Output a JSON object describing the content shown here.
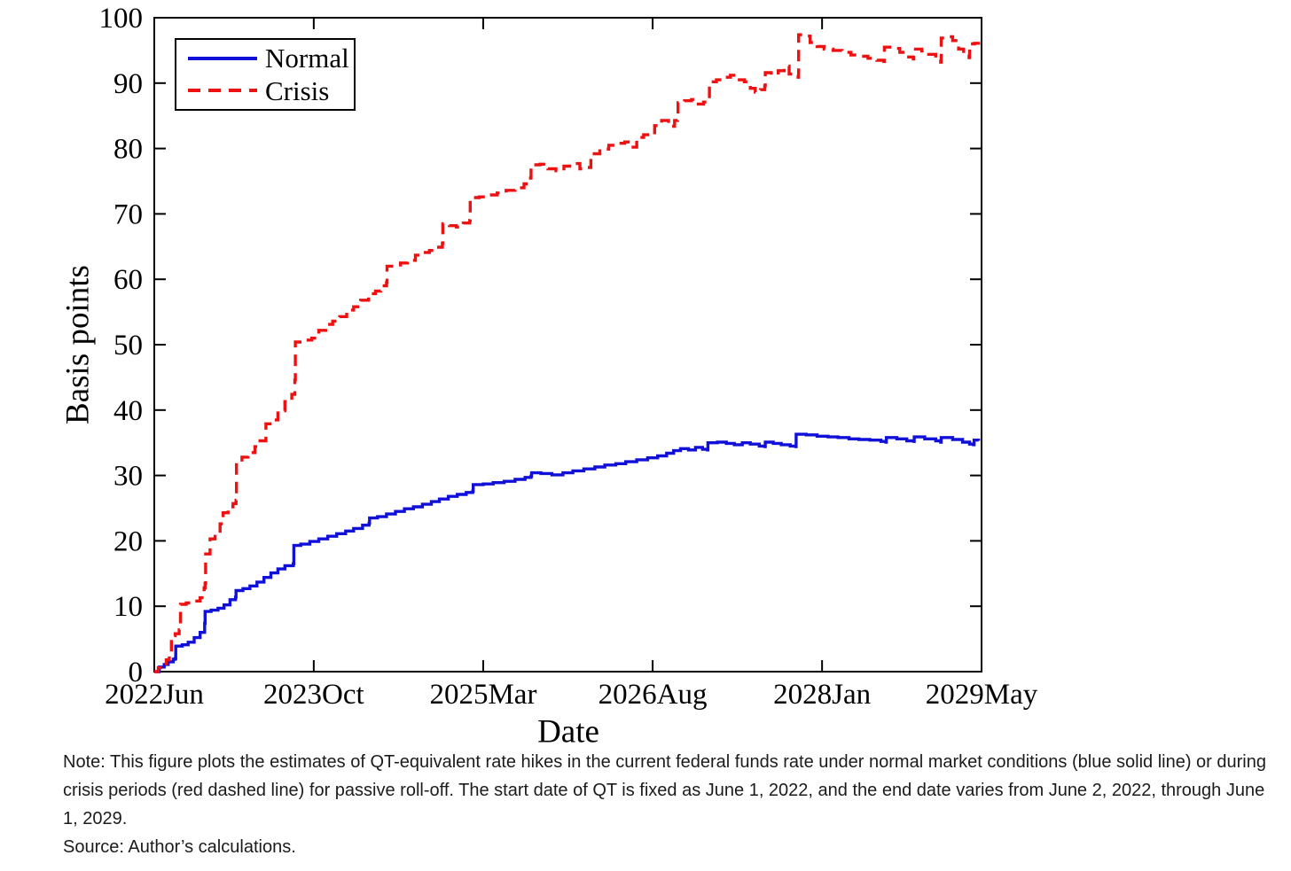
{
  "figure": {
    "legend": [
      {
        "label": "Normal",
        "color": "#1010d8",
        "style": "solid"
      },
      {
        "label": "Crisis",
        "color": "#ee1111",
        "style": "dashed"
      }
    ]
  },
  "note": {
    "text": "Note: This figure plots the estimates of QT-equivalent rate hikes in the current federal funds rate under normal market conditions (blue solid line) or during crisis periods (red dashed line) for passive roll-off. The start date of QT is fixed as June 1, 2022, and the end date varies from June 2, 2022, through June 1, 2029.",
    "source": "Source: Author’s calculations."
  },
  "chart_data": {
    "type": "line",
    "title": "",
    "xlabel": "Date",
    "ylabel": "Basis points",
    "x_unit": "months since June 2022",
    "xlim": [
      0,
      83
    ],
    "ylim": [
      0,
      100
    ],
    "grid": false,
    "legend_position": "top-left",
    "box": true,
    "yticks": [
      0,
      10,
      20,
      30,
      40,
      50,
      60,
      70,
      80,
      90,
      100
    ],
    "xticks": [
      {
        "pos": 0,
        "label": "2022Jun"
      },
      {
        "pos": 16,
        "label": "2023Oct"
      },
      {
        "pos": 33,
        "label": "2025Mar"
      },
      {
        "pos": 50,
        "label": "2026Aug"
      },
      {
        "pos": 67,
        "label": "2028Jan"
      },
      {
        "pos": 83,
        "label": "2029May"
      }
    ],
    "series": [
      {
        "name": "Normal",
        "color": "#1010d8",
        "dash": "solid",
        "interpolation": "step-after",
        "points": [
          [
            0,
            0
          ],
          [
            0.5,
            0.7
          ],
          [
            1.0,
            1.1
          ],
          [
            1.4,
            1.5
          ],
          [
            1.9,
            1.9
          ],
          [
            2.1,
            2.0
          ],
          [
            2.15,
            3.9
          ],
          [
            2.8,
            4.1
          ],
          [
            3.4,
            4.5
          ],
          [
            4.0,
            5.2
          ],
          [
            4.6,
            6.0
          ],
          [
            5.05,
            7.4
          ],
          [
            5.1,
            9.2
          ],
          [
            5.7,
            9.4
          ],
          [
            6.4,
            9.7
          ],
          [
            7.0,
            10.2
          ],
          [
            7.6,
            11.0
          ],
          [
            8.15,
            11.4
          ],
          [
            8.2,
            12.4
          ],
          [
            8.9,
            12.7
          ],
          [
            9.6,
            13.1
          ],
          [
            10.3,
            13.7
          ],
          [
            11.0,
            14.4
          ],
          [
            11.7,
            15.1
          ],
          [
            12.4,
            15.7
          ],
          [
            13.1,
            16.2
          ],
          [
            13.95,
            16.5
          ],
          [
            14.0,
            19.3
          ],
          [
            14.7,
            19.5
          ],
          [
            15.6,
            19.9
          ],
          [
            16.5,
            20.3
          ],
          [
            17.4,
            20.7
          ],
          [
            18.3,
            21.1
          ],
          [
            19.2,
            21.5
          ],
          [
            20.0,
            21.9
          ],
          [
            20.9,
            22.4
          ],
          [
            21.55,
            22.7
          ],
          [
            21.6,
            23.5
          ],
          [
            22.4,
            23.7
          ],
          [
            23.3,
            24.1
          ],
          [
            24.2,
            24.5
          ],
          [
            25.1,
            24.9
          ],
          [
            26.0,
            25.2
          ],
          [
            26.9,
            25.6
          ],
          [
            27.8,
            26.0
          ],
          [
            28.6,
            26.4
          ],
          [
            29.5,
            26.8
          ],
          [
            30.4,
            27.1
          ],
          [
            31.3,
            27.4
          ],
          [
            31.95,
            27.6
          ],
          [
            32.0,
            28.6
          ],
          [
            33.0,
            28.7
          ],
          [
            34.0,
            28.9
          ],
          [
            35.1,
            29.1
          ],
          [
            36.2,
            29.4
          ],
          [
            37.2,
            29.7
          ],
          [
            37.8,
            29.9
          ],
          [
            37.85,
            30.4
          ],
          [
            38.8,
            30.3
          ],
          [
            39.9,
            30.1
          ],
          [
            41.0,
            30.4
          ],
          [
            42.0,
            30.7
          ],
          [
            43.1,
            31.0
          ],
          [
            44.2,
            31.3
          ],
          [
            45.2,
            31.6
          ],
          [
            46.3,
            31.8
          ],
          [
            47.3,
            32.1
          ],
          [
            48.4,
            32.4
          ],
          [
            49.5,
            32.7
          ],
          [
            50.5,
            33.0
          ],
          [
            51.4,
            33.4
          ],
          [
            52.1,
            33.8
          ],
          [
            52.8,
            34.1
          ],
          [
            53.6,
            33.9
          ],
          [
            54.3,
            34.3
          ],
          [
            55.0,
            34.0
          ],
          [
            55.5,
            33.9
          ],
          [
            55.55,
            35.0
          ],
          [
            56.5,
            35.1
          ],
          [
            57.4,
            34.9
          ],
          [
            58.2,
            34.7
          ],
          [
            59.0,
            35.0
          ],
          [
            59.8,
            34.8
          ],
          [
            60.7,
            34.5
          ],
          [
            61.25,
            34.4
          ],
          [
            61.3,
            35.1
          ],
          [
            62.1,
            34.9
          ],
          [
            62.9,
            34.7
          ],
          [
            63.8,
            34.5
          ],
          [
            64.35,
            34.4
          ],
          [
            64.4,
            36.3
          ],
          [
            65.4,
            36.2
          ],
          [
            66.5,
            36.0
          ],
          [
            67.6,
            35.9
          ],
          [
            68.6,
            35.8
          ],
          [
            69.7,
            35.6
          ],
          [
            70.7,
            35.5
          ],
          [
            71.8,
            35.4
          ],
          [
            72.9,
            35.2
          ],
          [
            73.4,
            35.1
          ],
          [
            73.45,
            35.8
          ],
          [
            74.5,
            35.6
          ],
          [
            75.5,
            35.3
          ],
          [
            76.2,
            35.2
          ],
          [
            76.25,
            35.9
          ],
          [
            77.3,
            35.6
          ],
          [
            78.4,
            35.3
          ],
          [
            78.9,
            35.1
          ],
          [
            78.95,
            35.8
          ],
          [
            80.1,
            35.5
          ],
          [
            81.1,
            35.1
          ],
          [
            81.8,
            34.8
          ],
          [
            82.2,
            34.7
          ],
          [
            82.25,
            35.4
          ],
          [
            82.7,
            35.3
          ]
        ]
      },
      {
        "name": "Crisis",
        "color": "#ee1111",
        "dash": "dashed",
        "interpolation": "step-after",
        "points": [
          [
            0,
            0
          ],
          [
            0.4,
            0.6
          ],
          [
            0.8,
            1.2
          ],
          [
            1.2,
            1.8
          ],
          [
            1.5,
            2.4
          ],
          [
            1.7,
            2.4
          ],
          [
            1.72,
            5.5
          ],
          [
            2.1,
            5.8
          ],
          [
            2.5,
            6.4
          ],
          [
            2.6,
            6.5
          ],
          [
            2.62,
            10.3
          ],
          [
            3.2,
            10.5
          ],
          [
            3.9,
            10.8
          ],
          [
            4.6,
            11.3
          ],
          [
            5.0,
            12.8
          ],
          [
            5.1,
            13.5
          ],
          [
            5.15,
            18.0
          ],
          [
            5.6,
            20.3
          ],
          [
            6.1,
            21.0
          ],
          [
            6.6,
            22.6
          ],
          [
            6.9,
            24.3
          ],
          [
            7.4,
            25.2
          ],
          [
            7.9,
            25.7
          ],
          [
            8.2,
            26.2
          ],
          [
            8.25,
            31.9
          ],
          [
            8.8,
            32.8
          ],
          [
            9.4,
            33.5
          ],
          [
            10.1,
            34.4
          ],
          [
            10.6,
            35.3
          ],
          [
            11.2,
            37.9
          ],
          [
            11.9,
            38.5
          ],
          [
            12.4,
            39.9
          ],
          [
            13.1,
            41.3
          ],
          [
            13.8,
            42.4
          ],
          [
            14.1,
            44.6
          ],
          [
            14.15,
            50.4
          ],
          [
            14.9,
            50.7
          ],
          [
            15.8,
            51.0
          ],
          [
            16.5,
            52.2
          ],
          [
            17.2,
            53.1
          ],
          [
            17.9,
            53.6
          ],
          [
            18.6,
            54.3
          ],
          [
            19.3,
            55.3
          ],
          [
            20.0,
            55.8
          ],
          [
            20.7,
            56.8
          ],
          [
            21.5,
            57.8
          ],
          [
            22.2,
            58.2
          ],
          [
            22.7,
            59.0
          ],
          [
            23.3,
            59.5
          ],
          [
            23.35,
            62.0
          ],
          [
            24.0,
            62.2
          ],
          [
            24.7,
            62.5
          ],
          [
            25.4,
            62.9
          ],
          [
            26.2,
            63.7
          ],
          [
            26.9,
            64.1
          ],
          [
            27.6,
            64.4
          ],
          [
            28.3,
            64.9
          ],
          [
            28.9,
            65.5
          ],
          [
            28.95,
            68.5
          ],
          [
            29.6,
            68.2
          ],
          [
            30.3,
            68.0
          ],
          [
            31.0,
            68.6
          ],
          [
            31.65,
            69.0
          ],
          [
            31.7,
            72.5
          ],
          [
            32.6,
            72.6
          ],
          [
            33.5,
            72.9
          ],
          [
            34.4,
            73.2
          ],
          [
            35.3,
            73.6
          ],
          [
            36.2,
            74.0
          ],
          [
            37.1,
            74.6
          ],
          [
            37.75,
            75.5
          ],
          [
            37.8,
            77.5
          ],
          [
            38.7,
            77.6
          ],
          [
            39.5,
            76.9
          ],
          [
            40.3,
            76.6
          ],
          [
            41.1,
            77.3
          ],
          [
            41.9,
            77.7
          ],
          [
            42.7,
            76.9
          ],
          [
            43.4,
            77.1
          ],
          [
            43.8,
            79.2
          ],
          [
            44.7,
            79.9
          ],
          [
            45.6,
            80.5
          ],
          [
            46.5,
            80.8
          ],
          [
            47.2,
            81.0
          ],
          [
            47.7,
            80.2
          ],
          [
            48.4,
            81.7
          ],
          [
            49.1,
            82.1
          ],
          [
            49.7,
            82.0
          ],
          [
            50.2,
            83.5
          ],
          [
            50.9,
            84.3
          ],
          [
            51.6,
            83.4
          ],
          [
            52.2,
            84.3
          ],
          [
            52.5,
            84.6
          ],
          [
            52.55,
            87.0
          ],
          [
            53.2,
            87.3
          ],
          [
            53.9,
            87.5
          ],
          [
            54.4,
            86.8
          ],
          [
            55.1,
            87.1
          ],
          [
            55.65,
            87.3
          ],
          [
            55.7,
            90.2
          ],
          [
            56.4,
            90.5
          ],
          [
            57.1,
            90.9
          ],
          [
            57.8,
            91.2
          ],
          [
            58.5,
            90.5
          ],
          [
            59.2,
            90.2
          ],
          [
            59.8,
            89.2
          ],
          [
            60.3,
            88.6
          ],
          [
            60.8,
            89.0
          ],
          [
            61.25,
            89.6
          ],
          [
            61.3,
            91.6
          ],
          [
            61.9,
            91.3
          ],
          [
            62.6,
            91.9
          ],
          [
            63.2,
            92.6
          ],
          [
            63.7,
            91.4
          ],
          [
            64.4,
            91.0
          ],
          [
            64.6,
            90.9
          ],
          [
            64.65,
            97.4
          ],
          [
            65.3,
            97.2
          ],
          [
            65.8,
            96.2
          ],
          [
            66.5,
            95.6
          ],
          [
            67.2,
            95.2
          ],
          [
            68.1,
            95.0
          ],
          [
            69.0,
            94.7
          ],
          [
            69.9,
            94.3
          ],
          [
            70.7,
            94.1
          ],
          [
            71.6,
            93.8
          ],
          [
            72.5,
            93.5
          ],
          [
            73.2,
            93.3
          ],
          [
            73.25,
            95.5
          ],
          [
            74.1,
            95.3
          ],
          [
            74.8,
            94.7
          ],
          [
            75.5,
            94.0
          ],
          [
            76.15,
            93.7
          ],
          [
            76.2,
            95.2
          ],
          [
            77.0,
            94.9
          ],
          [
            77.7,
            94.4
          ],
          [
            78.4,
            93.8
          ],
          [
            78.9,
            93.2
          ],
          [
            78.95,
            96.9
          ],
          [
            79.6,
            97.1
          ],
          [
            80.1,
            96.5
          ],
          [
            80.7,
            95.2
          ],
          [
            81.2,
            94.5
          ],
          [
            81.75,
            93.9
          ],
          [
            81.8,
            96.0
          ],
          [
            82.3,
            96.1
          ],
          [
            82.7,
            96.3
          ]
        ]
      }
    ]
  }
}
